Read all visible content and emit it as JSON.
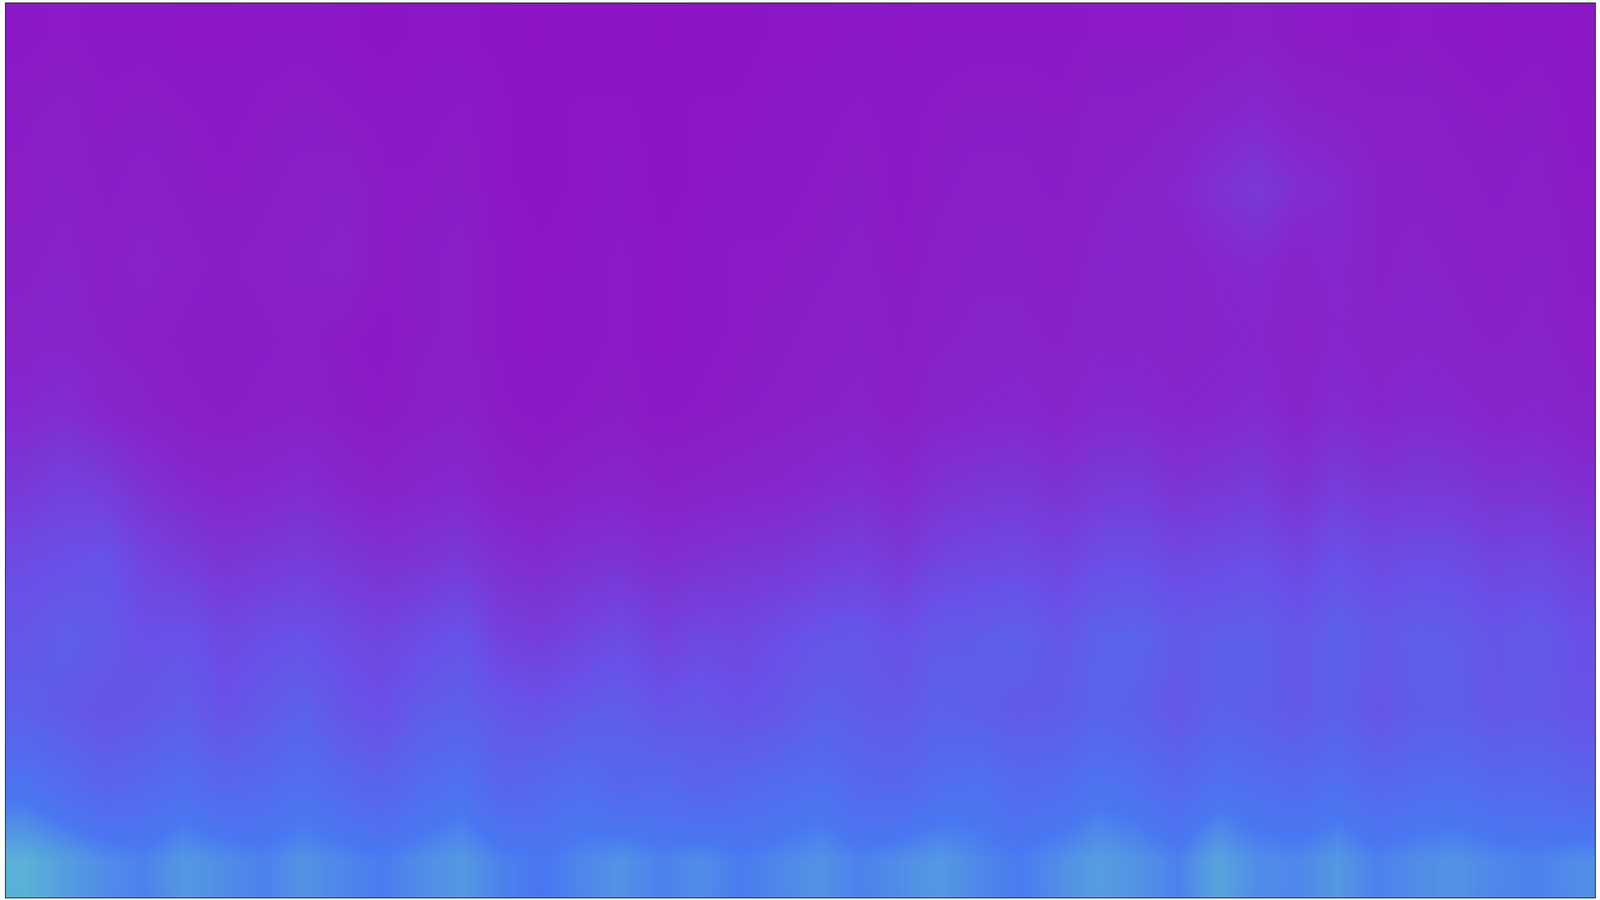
{
  "chart_data": {
    "type": "heatmap",
    "tick_labels": false,
    "cells": [
      [
        78,
        75,
        72,
        70,
        74,
        72,
        70,
        73,
        71,
        69,
        72,
        74,
        70,
        68,
        71,
        73,
        70,
        72,
        69,
        71,
        73,
        70,
        72,
        74,
        71,
        69,
        72,
        75,
        73,
        70,
        76,
        72,
        71,
        74,
        70,
        72,
        73,
        71,
        70,
        72
      ],
      [
        66,
        62,
        58,
        60,
        63,
        59,
        61,
        64,
        60,
        57,
        62,
        65,
        58,
        60,
        63,
        59,
        61,
        57,
        60,
        62,
        64,
        60,
        59,
        63,
        65,
        61,
        62,
        66,
        64,
        60,
        65,
        63,
        61,
        64,
        60,
        62,
        63,
        60,
        61,
        58
      ],
      [
        55,
        52,
        48,
        50,
        54,
        47,
        52,
        56,
        49,
        46,
        53,
        55,
        50,
        48,
        52,
        54,
        49,
        51,
        47,
        50,
        55,
        53,
        51,
        56,
        54,
        52,
        53,
        57,
        55,
        50,
        56,
        54,
        51,
        55,
        49,
        53,
        54,
        50,
        52,
        48
      ],
      [
        50,
        54,
        52,
        46,
        48,
        42,
        45,
        47,
        43,
        40,
        44,
        48,
        38,
        36,
        40,
        44,
        38,
        42,
        41,
        45,
        49,
        50,
        46,
        52,
        53,
        55,
        50,
        56,
        57,
        52,
        54,
        55,
        50,
        56,
        51,
        54,
        53,
        49,
        52,
        46
      ],
      [
        44,
        46,
        48,
        40,
        36,
        32,
        34,
        36,
        33,
        30,
        32,
        34,
        29,
        27,
        30,
        31,
        28,
        30,
        32,
        33,
        36,
        38,
        34,
        40,
        42,
        43,
        40,
        45,
        46,
        42,
        44,
        46,
        41,
        47,
        43,
        45,
        44,
        40,
        42,
        38
      ],
      [
        34,
        38,
        36,
        30,
        26,
        24,
        25,
        27,
        24,
        22,
        24,
        25,
        21,
        20,
        22,
        23,
        21,
        22,
        23,
        24,
        26,
        28,
        25,
        30,
        32,
        33,
        30,
        34,
        35,
        31,
        33,
        35,
        30,
        36,
        32,
        34,
        33,
        30,
        31,
        28
      ],
      [
        26,
        28,
        24,
        22,
        20,
        19,
        20,
        21,
        19,
        18,
        20,
        21,
        18,
        17,
        18,
        19,
        17,
        18,
        19,
        20,
        21,
        22,
        20,
        23,
        24,
        25,
        23,
        26,
        26,
        24,
        25,
        27,
        23,
        27,
        24,
        26,
        25,
        23,
        24,
        22
      ],
      [
        22,
        23,
        21,
        20,
        19,
        18,
        19,
        20,
        18,
        17,
        19,
        20,
        17,
        16,
        17,
        18,
        16,
        17,
        18,
        19,
        20,
        21,
        19,
        21,
        22,
        22,
        21,
        23,
        23,
        22,
        23,
        24,
        21,
        24,
        22,
        23,
        22,
        21,
        22,
        20
      ],
      [
        21,
        22,
        20,
        22,
        20,
        19,
        20,
        21,
        22,
        18,
        19,
        20,
        17,
        16,
        17,
        18,
        16,
        17,
        18,
        18,
        19,
        20,
        18,
        20,
        21,
        21,
        20,
        22,
        23,
        22,
        24,
        26,
        22,
        25,
        21,
        22,
        21,
        20,
        21,
        19
      ],
      [
        20,
        21,
        19,
        20,
        19,
        18,
        19,
        20,
        21,
        18,
        18,
        19,
        16,
        15,
        16,
        17,
        15,
        16,
        17,
        17,
        18,
        19,
        17,
        19,
        20,
        20,
        19,
        21,
        22,
        24,
        30,
        34,
        28,
        26,
        21,
        21,
        20,
        19,
        20,
        18
      ],
      [
        19,
        20,
        18,
        19,
        18,
        17,
        18,
        19,
        18,
        17,
        17,
        18,
        16,
        15,
        16,
        16,
        15,
        16,
        16,
        17,
        17,
        18,
        17,
        18,
        19,
        19,
        18,
        20,
        20,
        21,
        23,
        25,
        22,
        21,
        20,
        20,
        19,
        18,
        19,
        17
      ],
      [
        17,
        18,
        17,
        17,
        16,
        16,
        17,
        17,
        16,
        15,
        16,
        16,
        15,
        14,
        15,
        15,
        14,
        15,
        15,
        16,
        16,
        17,
        16,
        17,
        17,
        17,
        17,
        18,
        18,
        18,
        19,
        20,
        18,
        18,
        17,
        18,
        17,
        16,
        17,
        16
      ]
    ]
  }
}
